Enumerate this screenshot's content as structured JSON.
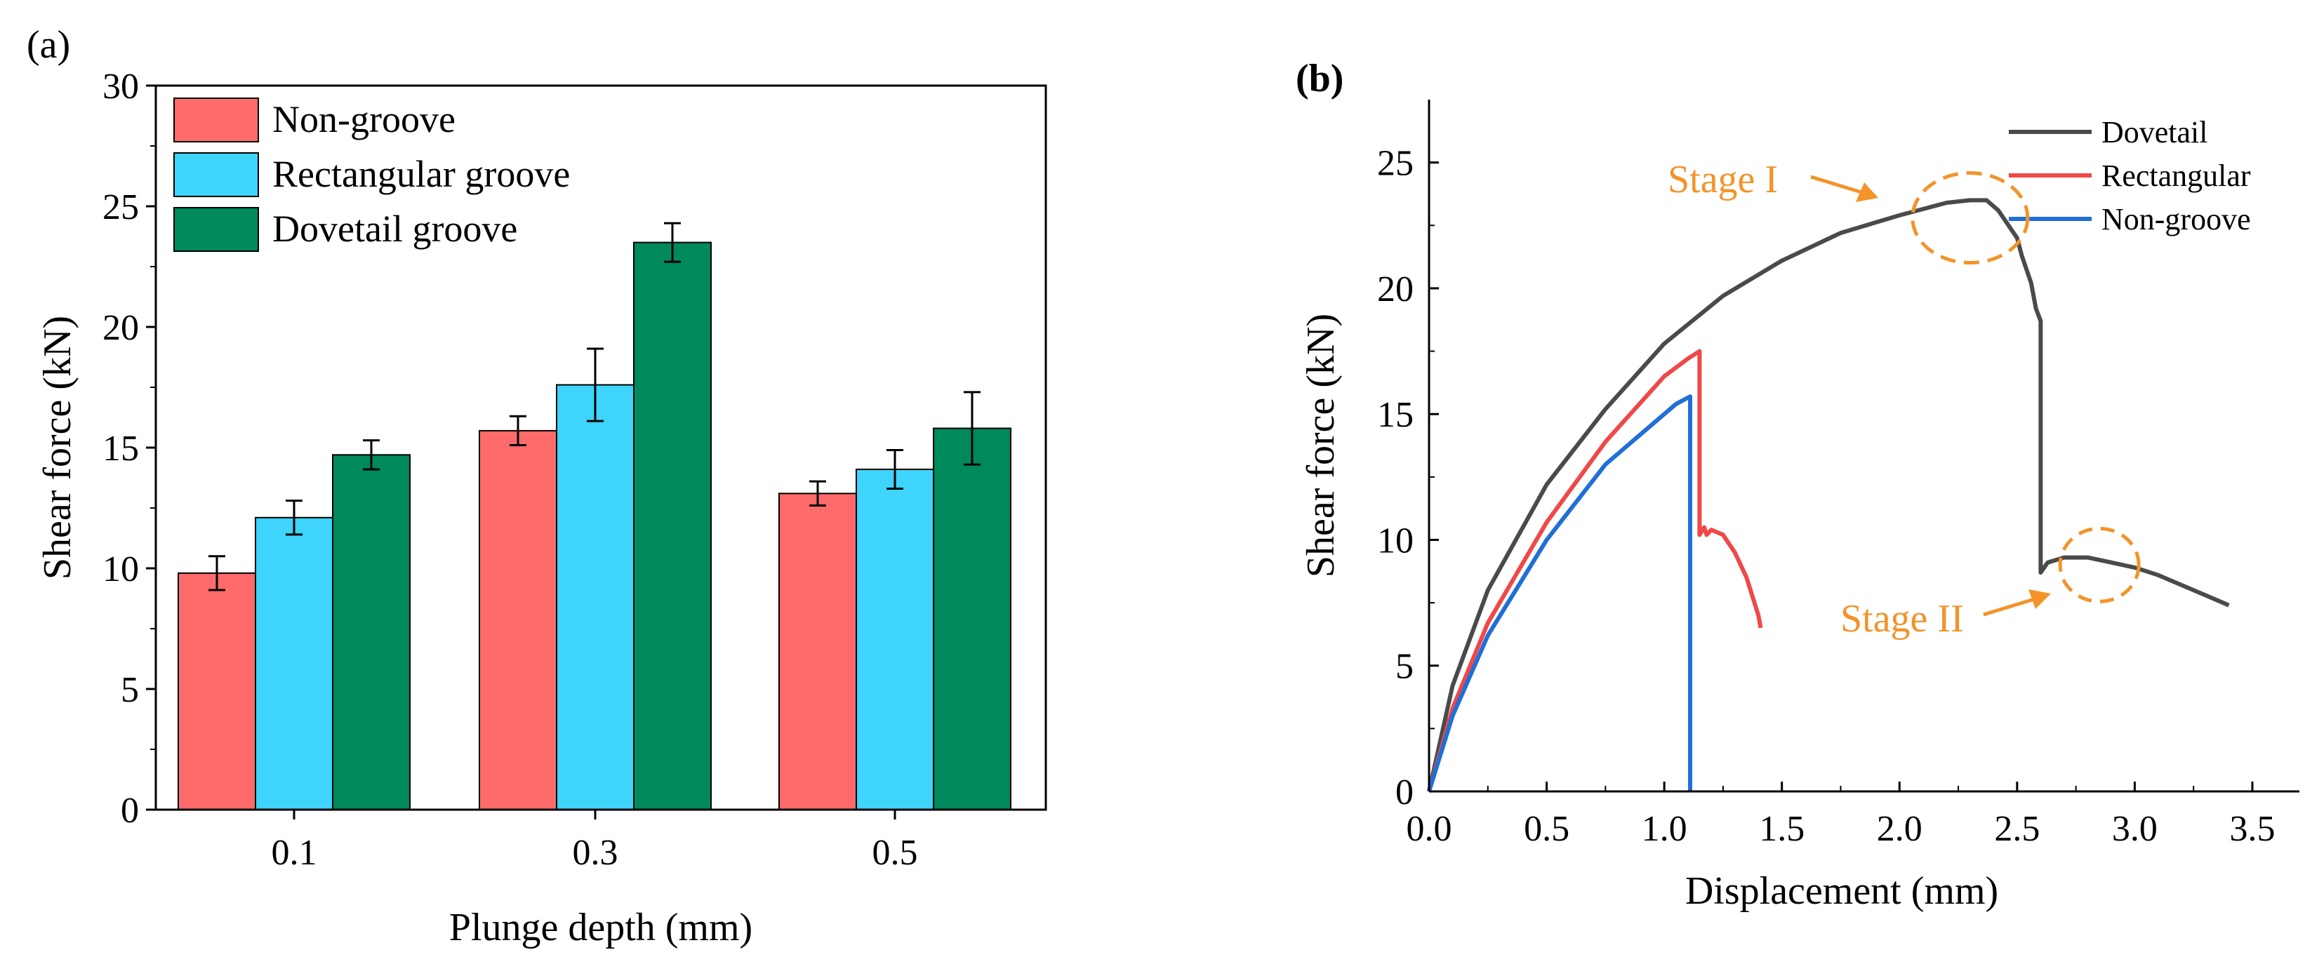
{
  "chart_data": [
    {
      "panel": "(a)",
      "type": "bar",
      "title": "",
      "xlabel": "Plunge depth (mm)",
      "ylabel": "Shear force (kN)",
      "categories": [
        "0.1",
        "0.3",
        "0.5"
      ],
      "ylim": [
        0,
        30
      ],
      "yticks": [
        "0",
        "5",
        "10",
        "15",
        "20",
        "25",
        "30"
      ],
      "legend_position": "top-left",
      "series": [
        {
          "name": "Non-groove",
          "color": "#ff6b6b",
          "values": [
            9.8,
            15.7,
            13.1
          ],
          "errors": [
            0.7,
            0.6,
            0.5
          ]
        },
        {
          "name": "Rectangular groove",
          "color": "#3fd4fb",
          "values": [
            12.1,
            17.6,
            14.1
          ],
          "errors": [
            0.7,
            1.5,
            0.8
          ]
        },
        {
          "name": "Dovetail groove",
          "color": "#00895a",
          "values": [
            14.7,
            23.5,
            15.8
          ],
          "errors": [
            0.6,
            0.8,
            1.5
          ]
        }
      ]
    },
    {
      "panel": "(b)",
      "type": "line",
      "title": "",
      "xlabel": "Displacement (mm)",
      "ylabel": "Shear force (kN)",
      "xlim": [
        0,
        3.7
      ],
      "ylim": [
        0,
        27.5
      ],
      "xticks": [
        "0.0",
        "0.5",
        "1.0",
        "1.5",
        "2.0",
        "2.5",
        "3.0",
        "3.5"
      ],
      "yticks": [
        "0",
        "5",
        "10",
        "15",
        "20",
        "25"
      ],
      "legend_position": "top-right",
      "series": [
        {
          "name": "Dovetail",
          "color": "#4a4a4a",
          "x": [
            0,
            0.1,
            0.25,
            0.5,
            0.75,
            1.0,
            1.25,
            1.5,
            1.75,
            2.0,
            2.2,
            2.3,
            2.37,
            2.42,
            2.5,
            2.52,
            2.56,
            2.58,
            2.6,
            2.6,
            2.63,
            2.7,
            2.8,
            2.9,
            3.0,
            3.1,
            3.2,
            3.3,
            3.4
          ],
          "y": [
            0,
            4.2,
            8.0,
            12.2,
            15.2,
            17.8,
            19.7,
            21.1,
            22.2,
            22.9,
            23.4,
            23.5,
            23.5,
            23.1,
            22.0,
            21.3,
            20.2,
            19.2,
            18.7,
            8.7,
            9.1,
            9.3,
            9.3,
            9.1,
            8.9,
            8.6,
            8.2,
            7.8,
            7.4
          ]
        },
        {
          "name": "Rectangular",
          "color": "#f04848",
          "x": [
            0,
            0.1,
            0.25,
            0.5,
            0.75,
            1.0,
            1.1,
            1.15,
            1.15,
            1.17,
            1.18,
            1.2,
            1.25,
            1.3,
            1.35,
            1.38,
            1.4,
            1.41
          ],
          "y": [
            0,
            3.3,
            6.7,
            10.7,
            13.9,
            16.5,
            17.2,
            17.5,
            10.2,
            10.5,
            10.2,
            10.4,
            10.2,
            9.5,
            8.5,
            7.6,
            7.0,
            6.5
          ]
        },
        {
          "name": "Non-groove",
          "color": "#1f6fd6",
          "x": [
            0,
            0.1,
            0.25,
            0.5,
            0.75,
            1.0,
            1.05,
            1.11,
            1.11
          ],
          "y": [
            0,
            3.0,
            6.2,
            10.0,
            13.0,
            15.0,
            15.4,
            15.7,
            0
          ]
        }
      ],
      "annotations": [
        {
          "text": "Stage I",
          "x": 2.3,
          "y": 22.8
        },
        {
          "text": "Stage II",
          "x": 2.85,
          "y": 9.0
        }
      ]
    }
  ]
}
